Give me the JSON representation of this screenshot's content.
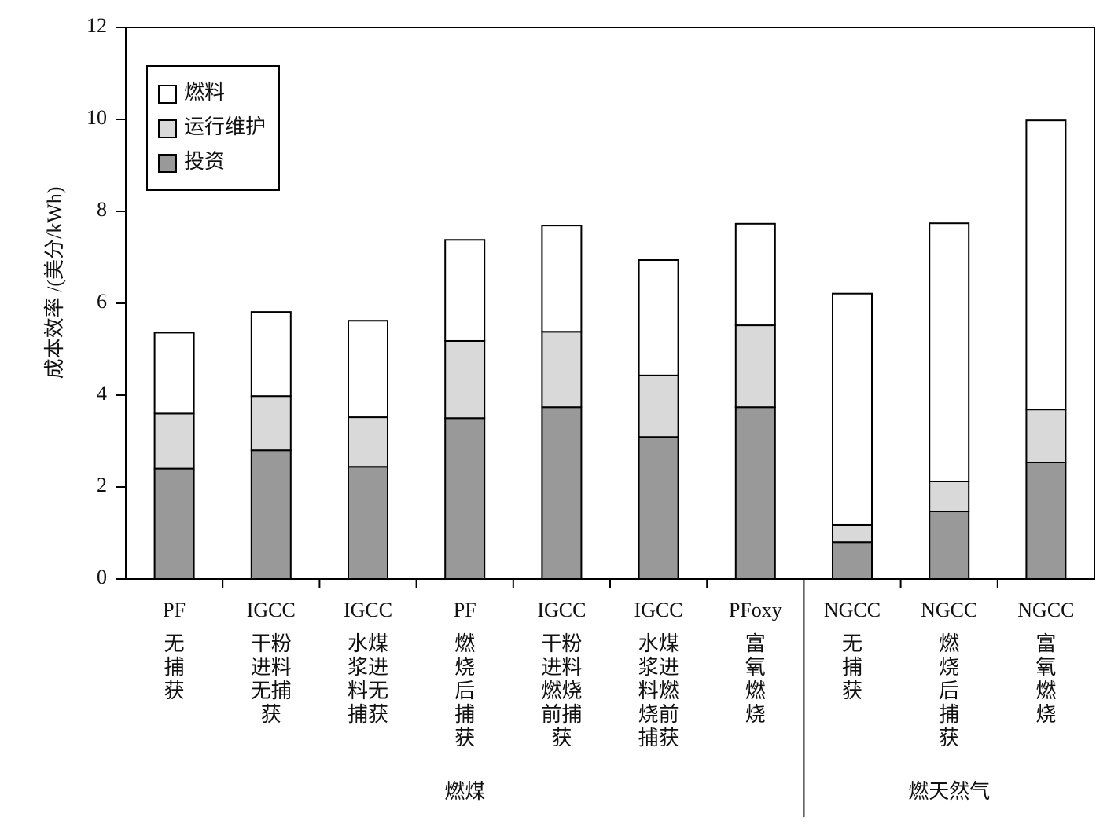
{
  "chart_data": {
    "type": "stacked_bar",
    "ylabel": "成本效率 /(美分/kWh)",
    "categories": [
      "PF",
      "IGCC",
      "IGCC",
      "PF",
      "IGCC",
      "IGCC",
      "PFoxy",
      "NGCC",
      "NGCC",
      "NGCC"
    ],
    "category_notes": [
      "无捕获",
      "干粉进料无捕获",
      "水煤浆进料无捕获",
      "燃烧后捕获",
      "干粉进料燃烧前捕获",
      "水煤浆进料燃烧前捕获",
      "富氧燃烧",
      "无捕获",
      "燃烧后捕获",
      "富氧燃烧"
    ],
    "category_groups": [
      "燃煤",
      "燃煤",
      "燃煤",
      "燃煤",
      "燃煤",
      "燃煤",
      "燃煤",
      "燃天然气",
      "燃天然气",
      "燃天然气"
    ],
    "series": [
      {
        "name": "投资",
        "color": "#999999",
        "values": [
          2.4,
          2.8,
          2.44,
          3.5,
          3.74,
          3.09,
          3.74,
          0.8,
          1.47,
          2.53
        ]
      },
      {
        "name": "运行维护",
        "color": "#d9d9d9",
        "values": [
          1.2,
          1.18,
          1.08,
          1.68,
          1.64,
          1.34,
          1.78,
          0.38,
          0.65,
          1.16
        ]
      },
      {
        "name": "燃料",
        "color": "#ffffff",
        "values": [
          1.76,
          1.83,
          2.1,
          2.2,
          2.31,
          2.51,
          2.21,
          5.03,
          5.62,
          6.29
        ]
      }
    ],
    "ylim": [
      0,
      12
    ],
    "yticks": [
      0,
      2,
      4,
      6,
      8,
      10,
      12
    ],
    "legend": "upper-left"
  }
}
